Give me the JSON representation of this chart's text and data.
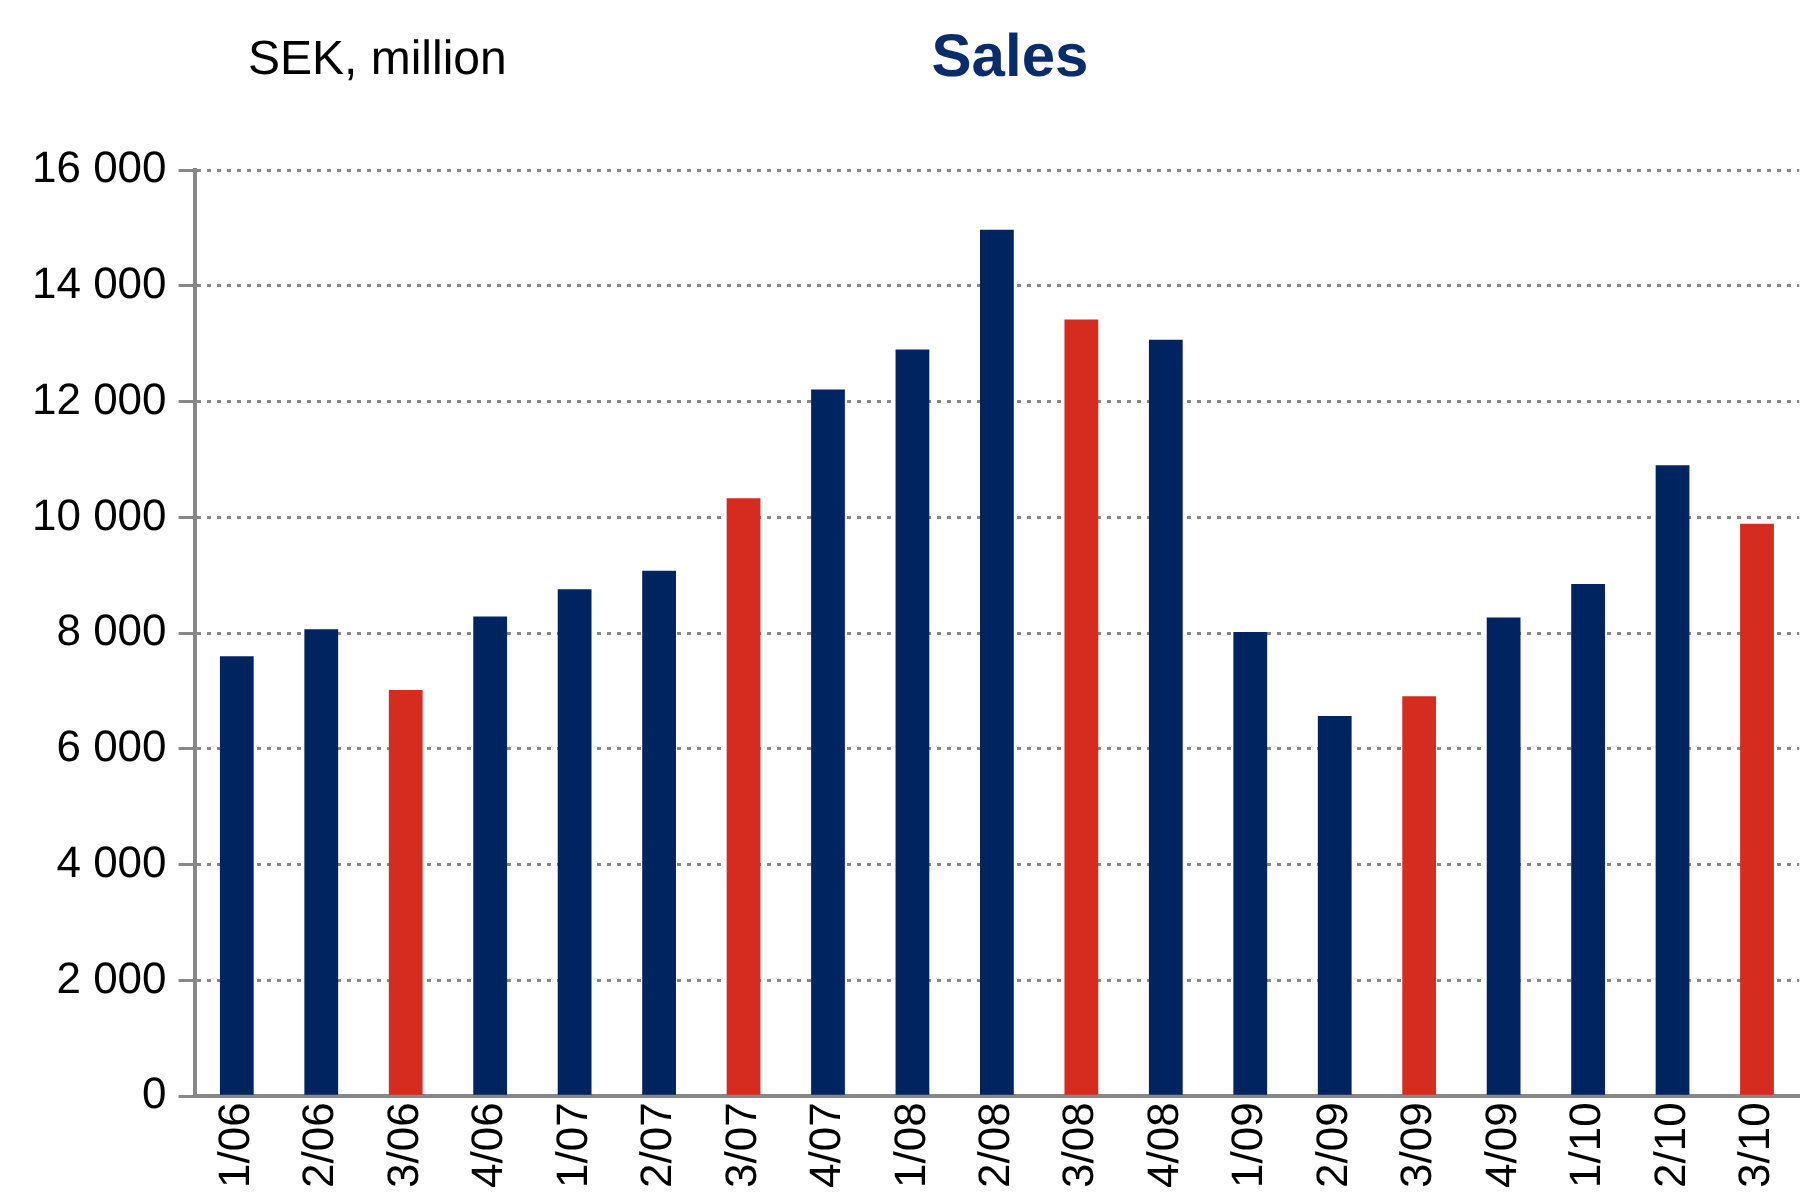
{
  "chart_data": {
    "type": "bar",
    "title": "Sales",
    "ylabel": "SEK, million",
    "categories": [
      "1/06",
      "2/06",
      "3/06",
      "4/06",
      "1/07",
      "2/07",
      "3/07",
      "4/07",
      "1/08",
      "2/08",
      "3/08",
      "4/08",
      "1/09",
      "2/09",
      "3/09",
      "4/09",
      "1/10",
      "2/10",
      "3/10"
    ],
    "values": [
      7600,
      8070,
      7020,
      8290,
      8760,
      9080,
      10330,
      12210,
      12900,
      14970,
      13420,
      13070,
      8020,
      6570,
      6910,
      8270,
      8850,
      10900,
      9890
    ],
    "colors": [
      "#00245f",
      "#00245f",
      "#d62b1f",
      "#00245f",
      "#00245f",
      "#00245f",
      "#d62b1f",
      "#00245f",
      "#00245f",
      "#00245f",
      "#d62b1f",
      "#00245f",
      "#00245f",
      "#00245f",
      "#d62b1f",
      "#00245f",
      "#00245f",
      "#00245f",
      "#d62b1f"
    ],
    "ylim": [
      0,
      16000
    ],
    "yticks": [
      {
        "value": 0,
        "label": "0"
      },
      {
        "value": 2000,
        "label": "2 000"
      },
      {
        "value": 4000,
        "label": "4 000"
      },
      {
        "value": 6000,
        "label": "6 000"
      },
      {
        "value": 8000,
        "label": "8 000"
      },
      {
        "value": 10000,
        "label": "10 000"
      },
      {
        "value": 12000,
        "label": "12 000"
      },
      {
        "value": 14000,
        "label": "14 000"
      },
      {
        "value": 16000,
        "label": "16 000"
      }
    ],
    "grid": "y"
  }
}
